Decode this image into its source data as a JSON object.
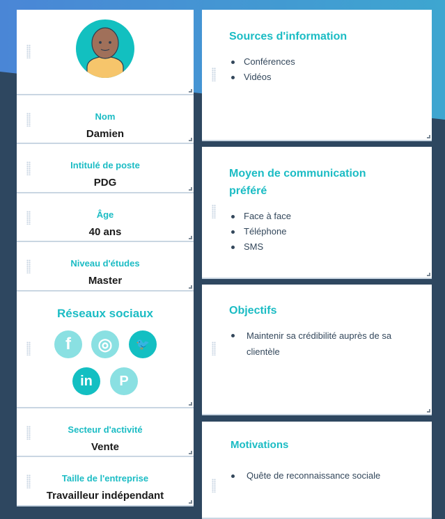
{
  "profile": {
    "avatar_alt": "avatar"
  },
  "fields": [
    {
      "label": "Nom",
      "value": "Damien"
    },
    {
      "label": "Intitulé de poste",
      "value": "PDG"
    },
    {
      "label": "Âge",
      "value": "40 ans"
    },
    {
      "label": "Niveau d'études",
      "value": "Master"
    }
  ],
  "social": {
    "title": "Réseaux sociaux",
    "icons": [
      {
        "name": "facebook",
        "glyph": "f",
        "active": false
      },
      {
        "name": "instagram",
        "glyph": "◎",
        "active": false
      },
      {
        "name": "twitter",
        "glyph": "🐦",
        "active": true
      },
      {
        "name": "linkedin",
        "glyph": "in",
        "active": true
      },
      {
        "name": "pinterest",
        "glyph": "P",
        "active": false
      }
    ],
    "colors": {
      "active": "#13bfc2",
      "inactive": "#8ae0e2"
    }
  },
  "fields2": [
    {
      "label": "Secteur d'activité",
      "value": "Vente"
    },
    {
      "label": "Taille de l'entreprise",
      "value": "Travailleur indépendant"
    }
  ],
  "sections": [
    {
      "title": "Sources d'information",
      "items": [
        "Conférences",
        "Vidéos"
      ]
    },
    {
      "title": "Moyen de communication préféré",
      "items": [
        "Face à face",
        "Téléphone",
        "SMS"
      ]
    },
    {
      "title": "Objectifs",
      "items": [
        "Maintenir sa crédibilité auprès de sa clientèle"
      ]
    },
    {
      "title": "Motivations",
      "items": [
        "Quête de reconnaissance sociale"
      ]
    }
  ]
}
